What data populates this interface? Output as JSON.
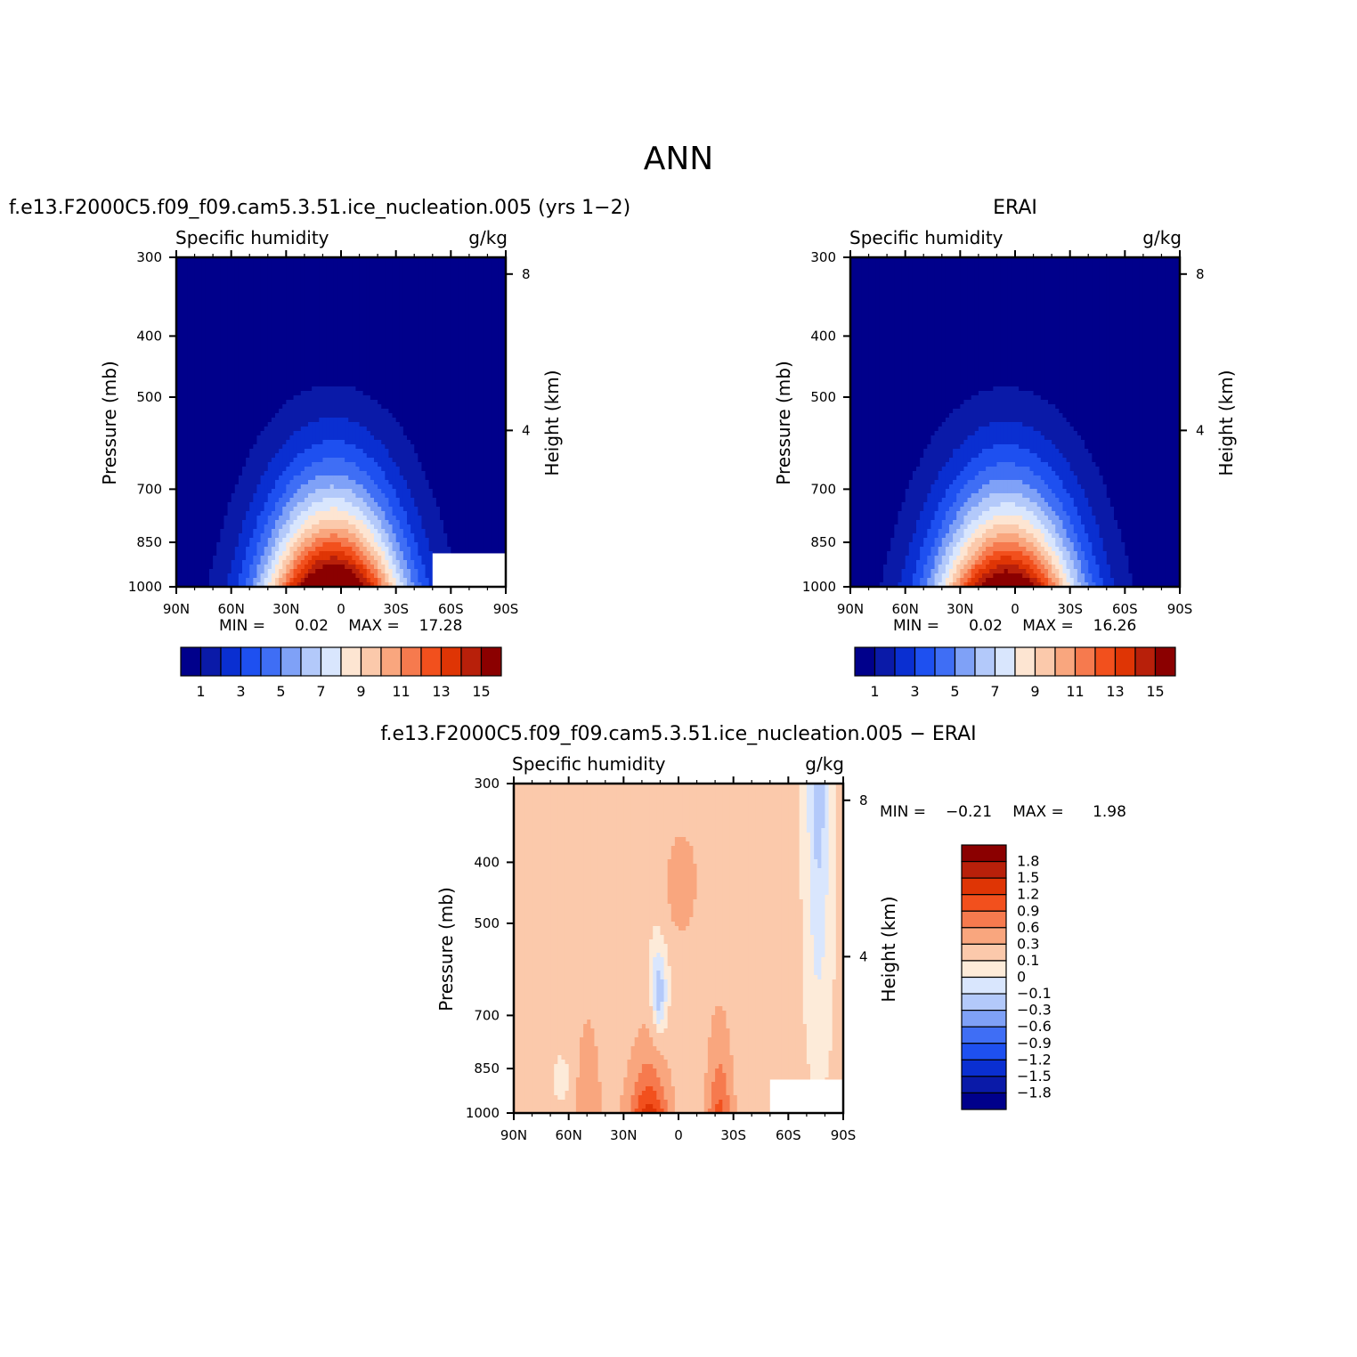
{
  "page": {
    "title": "ANN"
  },
  "panels": [
    {
      "id": "model",
      "title": "f.e13.F2000C5.f09_f09.cam5.3.51.ice_nucleation.005 (yrs 1−2)",
      "left_label": "Specific humidity",
      "right_label": "g/kg",
      "ylabel": "Pressure (mb)",
      "y2label": "Height (km)",
      "stats": {
        "min_label": "MIN =",
        "min_value": "0.02",
        "max_label": "MAX =",
        "max_value": "17.28"
      },
      "colorbar_labels": [
        "1",
        "3",
        "5",
        "7",
        "9",
        "11",
        "13",
        "15"
      ]
    },
    {
      "id": "obs",
      "title": "ERAI",
      "left_label": "Specific humidity",
      "right_label": "g/kg",
      "ylabel": "Pressure (mb)",
      "y2label": "Height (km)",
      "stats": {
        "min_label": "MIN =",
        "min_value": "0.02",
        "max_label": "MAX =",
        "max_value": "16.26"
      },
      "colorbar_labels": [
        "1",
        "3",
        "5",
        "7",
        "9",
        "11",
        "13",
        "15"
      ]
    },
    {
      "id": "diff",
      "title": "f.e13.F2000C5.f09_f09.cam5.3.51.ice_nucleation.005 − ERAI",
      "left_label": "Specific humidity",
      "right_label": "g/kg",
      "ylabel": "Pressure (mb)",
      "y2label": "Height (km)",
      "stats": {
        "min_label": "MIN =",
        "min_value": "−0.21",
        "max_label": "MAX =",
        "max_value": "1.98"
      },
      "colorbar_labels": [
        "1.8",
        "1.5",
        "1.2",
        "0.9",
        "0.6",
        "0.3",
        "0.1",
        "0",
        "−0.1",
        "−0.3",
        "−0.6",
        "−0.9",
        "−1.2",
        "−1.5",
        "−1.8"
      ]
    }
  ],
  "chart_data": [
    {
      "type": "heatmap",
      "title": "f.e13.F2000C5.f09_f09.cam5.3.51.ice_nucleation.005 (yrs 1−2)",
      "xlabel": "",
      "ylabel": "Pressure (mb)",
      "y2label": "Height (km)",
      "x_ticks": [
        "90N",
        "60N",
        "30N",
        "0",
        "30S",
        "60S",
        "90S"
      ],
      "y_ticks": [
        "300",
        "400",
        "500",
        "700",
        "850",
        "1000"
      ],
      "y2_ticks": [
        "8",
        "4"
      ],
      "y_scale": "log",
      "ylim": [
        1000,
        300
      ],
      "xlim": [
        90,
        -90
      ],
      "min": 0.02,
      "max": 17.28,
      "levels": [
        1,
        2,
        3,
        4,
        5,
        6,
        7,
        8,
        9,
        10,
        11,
        12,
        13,
        14,
        15
      ],
      "colors": [
        "#00008b",
        "#0a1aa8",
        "#0a2fd1",
        "#1e50f0",
        "#3f6ef5",
        "#7fa1f7",
        "#b3c9fa",
        "#d9e6fd",
        "#fde5d2",
        "#fbc9ab",
        "#f9a67e",
        "#f67a4e",
        "#f2501d",
        "#df3505",
        "#b8200a",
        "#8b0000"
      ],
      "approx_profile": "maximum near equator at surface, decreasing poleward and upward"
    },
    {
      "type": "heatmap",
      "title": "ERAI",
      "xlabel": "",
      "ylabel": "Pressure (mb)",
      "y2label": "Height (km)",
      "x_ticks": [
        "90N",
        "60N",
        "30N",
        "0",
        "30S",
        "60S",
        "90S"
      ],
      "y_ticks": [
        "300",
        "400",
        "500",
        "700",
        "850",
        "1000"
      ],
      "y2_ticks": [
        "8",
        "4"
      ],
      "y_scale": "log",
      "ylim": [
        1000,
        300
      ],
      "xlim": [
        90,
        -90
      ],
      "min": 0.02,
      "max": 16.26,
      "levels": [
        1,
        2,
        3,
        4,
        5,
        6,
        7,
        8,
        9,
        10,
        11,
        12,
        13,
        14,
        15
      ]
    },
    {
      "type": "heatmap",
      "title": "f.e13.F2000C5.f09_f09.cam5.3.51.ice_nucleation.005 − ERAI",
      "xlabel": "",
      "ylabel": "Pressure (mb)",
      "y2label": "Height (km)",
      "x_ticks": [
        "90N",
        "60N",
        "30N",
        "0",
        "30S",
        "60S",
        "90S"
      ],
      "y_ticks": [
        "300",
        "400",
        "500",
        "700",
        "850",
        "1000"
      ],
      "y2_ticks": [
        "8",
        "4"
      ],
      "y_scale": "log",
      "ylim": [
        1000,
        300
      ],
      "xlim": [
        90,
        -90
      ],
      "min": -0.21,
      "max": 1.98,
      "levels": [
        -1.8,
        -1.5,
        -1.2,
        -0.9,
        -0.6,
        -0.3,
        -0.1,
        0,
        0.1,
        0.3,
        0.6,
        0.9,
        1.2,
        1.5,
        1.8
      ],
      "colors": [
        "#00008b",
        "#0a1aa8",
        "#0a2fd1",
        "#1e50f0",
        "#3f6ef5",
        "#7fa1f7",
        "#b3c9fa",
        "#d9e6fd",
        "#fdebd9",
        "#fbc9ab",
        "#f9a67e",
        "#f67a4e",
        "#f2501d",
        "#df3505",
        "#b8200a",
        "#8b0000"
      ]
    }
  ]
}
